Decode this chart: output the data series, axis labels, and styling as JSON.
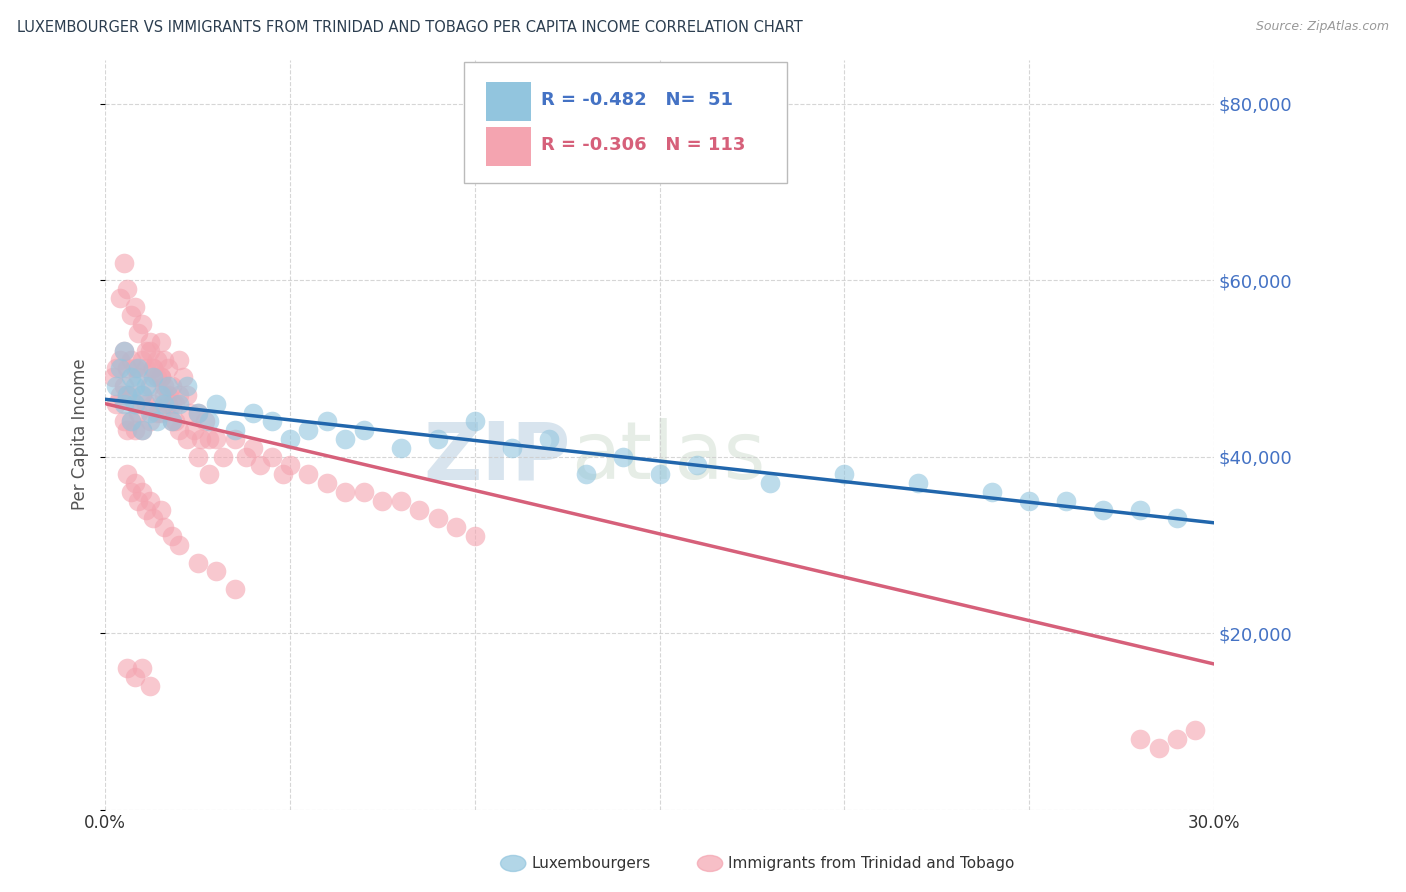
{
  "title": "LUXEMBOURGER VS IMMIGRANTS FROM TRINIDAD AND TOBAGO PER CAPITA INCOME CORRELATION CHART",
  "source": "Source: ZipAtlas.com",
  "ylabel": "Per Capita Income",
  "xlim": [
    0.0,
    0.3
  ],
  "ylim": [
    0,
    85000
  ],
  "xticks": [
    0.0,
    0.05,
    0.1,
    0.15,
    0.2,
    0.25,
    0.3
  ],
  "xticklabels": [
    "0.0%",
    "",
    "",
    "",
    "",
    "",
    "30.0%"
  ],
  "yticks": [
    0,
    20000,
    40000,
    60000,
    80000
  ],
  "yticklabels": [
    "",
    "$20,000",
    "$40,000",
    "$60,000",
    "$80,000"
  ],
  "blue_color": "#92c5de",
  "pink_color": "#f4a4b0",
  "blue_line_color": "#2166ac",
  "pink_line_color": "#d6607a",
  "R_blue": -0.482,
  "N_blue": 51,
  "R_pink": -0.306,
  "N_pink": 113,
  "watermark_zip": "ZIP",
  "watermark_atlas": "atlas",
  "legend_label_blue": "Luxembourgers",
  "legend_label_pink": "Immigrants from Trinidad and Tobago",
  "blue_scatter_x": [
    0.003,
    0.004,
    0.005,
    0.005,
    0.006,
    0.007,
    0.007,
    0.008,
    0.008,
    0.009,
    0.01,
    0.01,
    0.011,
    0.012,
    0.013,
    0.014,
    0.015,
    0.016,
    0.017,
    0.018,
    0.02,
    0.022,
    0.025,
    0.028,
    0.03,
    0.035,
    0.04,
    0.045,
    0.05,
    0.055,
    0.06,
    0.065,
    0.07,
    0.08,
    0.09,
    0.1,
    0.11,
    0.12,
    0.13,
    0.14,
    0.15,
    0.16,
    0.18,
    0.2,
    0.22,
    0.24,
    0.25,
    0.26,
    0.27,
    0.28,
    0.29
  ],
  "blue_scatter_y": [
    48000,
    50000,
    46000,
    52000,
    47000,
    49000,
    44000,
    48000,
    46000,
    50000,
    47000,
    43000,
    48000,
    45000,
    49000,
    44000,
    47000,
    46000,
    48000,
    44000,
    46000,
    48000,
    45000,
    44000,
    46000,
    43000,
    45000,
    44000,
    42000,
    43000,
    44000,
    42000,
    43000,
    41000,
    42000,
    44000,
    41000,
    42000,
    38000,
    40000,
    38000,
    39000,
    37000,
    38000,
    37000,
    36000,
    35000,
    35000,
    34000,
    34000,
    33000
  ],
  "pink_scatter_x": [
    0.002,
    0.003,
    0.003,
    0.004,
    0.004,
    0.005,
    0.005,
    0.005,
    0.006,
    0.006,
    0.006,
    0.007,
    0.007,
    0.007,
    0.008,
    0.008,
    0.008,
    0.009,
    0.009,
    0.01,
    0.01,
    0.01,
    0.011,
    0.011,
    0.012,
    0.012,
    0.012,
    0.013,
    0.013,
    0.014,
    0.014,
    0.015,
    0.015,
    0.015,
    0.016,
    0.016,
    0.017,
    0.017,
    0.018,
    0.018,
    0.019,
    0.02,
    0.02,
    0.021,
    0.022,
    0.023,
    0.024,
    0.025,
    0.026,
    0.027,
    0.028,
    0.03,
    0.032,
    0.035,
    0.038,
    0.04,
    0.042,
    0.045,
    0.048,
    0.05,
    0.055,
    0.06,
    0.065,
    0.07,
    0.075,
    0.08,
    0.085,
    0.09,
    0.095,
    0.1,
    0.004,
    0.005,
    0.006,
    0.007,
    0.008,
    0.009,
    0.01,
    0.011,
    0.012,
    0.013,
    0.014,
    0.015,
    0.016,
    0.017,
    0.018,
    0.019,
    0.02,
    0.022,
    0.025,
    0.028,
    0.006,
    0.007,
    0.008,
    0.009,
    0.01,
    0.011,
    0.012,
    0.013,
    0.015,
    0.016,
    0.018,
    0.02,
    0.025,
    0.03,
    0.035,
    0.006,
    0.008,
    0.01,
    0.012,
    0.28,
    0.285,
    0.29,
    0.295
  ],
  "pink_scatter_y": [
    49000,
    50000,
    46000,
    51000,
    47000,
    52000,
    48000,
    44000,
    50000,
    47000,
    43000,
    51000,
    47000,
    44000,
    50000,
    46000,
    43000,
    49000,
    45000,
    51000,
    47000,
    43000,
    50000,
    46000,
    52000,
    48000,
    44000,
    50000,
    46000,
    49000,
    45000,
    53000,
    49000,
    45000,
    51000,
    47000,
    50000,
    46000,
    48000,
    44000,
    46000,
    51000,
    47000,
    49000,
    47000,
    45000,
    43000,
    45000,
    42000,
    44000,
    42000,
    42000,
    40000,
    42000,
    40000,
    41000,
    39000,
    40000,
    38000,
    39000,
    38000,
    37000,
    36000,
    36000,
    35000,
    35000,
    34000,
    33000,
    32000,
    31000,
    58000,
    62000,
    59000,
    56000,
    57000,
    54000,
    55000,
    52000,
    53000,
    50000,
    51000,
    49000,
    48000,
    47000,
    46000,
    44000,
    43000,
    42000,
    40000,
    38000,
    38000,
    36000,
    37000,
    35000,
    36000,
    34000,
    35000,
    33000,
    34000,
    32000,
    31000,
    30000,
    28000,
    27000,
    25000,
    16000,
    15000,
    16000,
    14000,
    8000,
    7000,
    8000,
    9000
  ],
  "blue_trendline_x": [
    0.0,
    0.3
  ],
  "blue_trendline_y": [
    46500,
    32500
  ],
  "pink_trendline_x": [
    0.0,
    0.3
  ],
  "pink_trendline_y": [
    46000,
    16500
  ],
  "background_color": "#ffffff",
  "grid_color": "#cccccc",
  "title_color": "#2c3e50",
  "axis_label_color": "#555555",
  "right_tick_color": "#4472c4",
  "source_color": "#999999"
}
